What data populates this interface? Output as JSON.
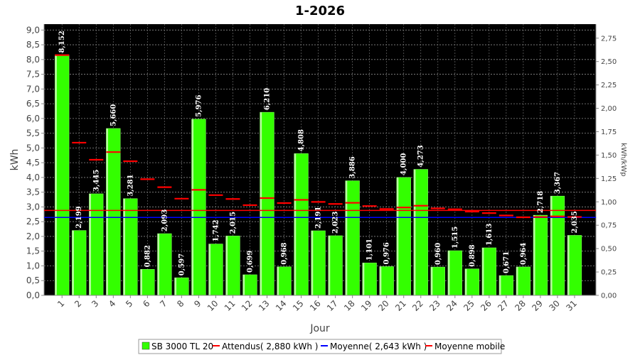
{
  "chart_data": {
    "type": "bar",
    "title": "1-2026",
    "xlabel": "Jour",
    "ylabel": "kWh",
    "y2label": "kWh/kWp",
    "ylim": [
      0,
      9.2
    ],
    "y2lim": [
      0,
      2.9
    ],
    "yticks": [
      "0,0",
      "0,5",
      "1,0",
      "1,5",
      "2,0",
      "2,5",
      "3,0",
      "3,5",
      "4,0",
      "4,5",
      "5,0",
      "5,5",
      "6,0",
      "6,5",
      "7,0",
      "7,5",
      "8,0",
      "8,5",
      "9,0"
    ],
    "y2ticks": [
      "0,00",
      "0,25",
      "0,50",
      "0,75",
      "1,00",
      "1,25",
      "1,50",
      "1,75",
      "2,00",
      "2,25",
      "2,50",
      "2,75"
    ],
    "categories": [
      "1",
      "2",
      "3",
      "4",
      "5",
      "6",
      "7",
      "8",
      "9",
      "10",
      "11",
      "12",
      "13",
      "14",
      "15",
      "16",
      "17",
      "18",
      "19",
      "20",
      "21",
      "22",
      "23",
      "24",
      "25",
      "26",
      "27",
      "28",
      "29",
      "30",
      "31"
    ],
    "series": [
      {
        "name": "SB 3000 TL 20",
        "color": "#33ff00",
        "values": [
          8.152,
          2.199,
          3.445,
          5.66,
          3.281,
          0.882,
          2.093,
          0.597,
          5.976,
          1.742,
          2.015,
          0.699,
          6.21,
          0.968,
          4.808,
          2.191,
          2.023,
          3.886,
          1.101,
          0.976,
          4.0,
          4.273,
          0.96,
          1.515,
          0.898,
          1.613,
          0.671,
          0.964,
          2.718,
          3.367,
          2.035
        ],
        "labels": [
          "8,152",
          "2,199",
          "3,445",
          "5,660",
          "3,281",
          "0,882",
          "2,093",
          "0,597",
          "5,976",
          "1,742",
          "2,015",
          "0,699",
          "6,210",
          "0,968",
          "4,808",
          "2,191",
          "2,023",
          "3,886",
          "1,101",
          "0,976",
          "4,000",
          "4,273",
          "0,960",
          "1,515",
          "0,898",
          "1,613",
          "0,671",
          "0,964",
          "2,718",
          "3,367",
          "2,035"
        ]
      },
      {
        "name": "Attendus( 2,880 kWh )",
        "color": "#ff0000",
        "value": 2.88
      },
      {
        "name": "Moyenne( 2,643 kWh )",
        "color": "#0000ff",
        "value": 2.643
      },
      {
        "name": "Moyenne mobile",
        "color": "#ff0000",
        "values": [
          8.15,
          5.18,
          4.6,
          4.86,
          4.55,
          3.94,
          3.67,
          3.28,
          3.58,
          3.4,
          3.27,
          3.06,
          3.3,
          3.13,
          3.24,
          3.17,
          3.1,
          3.14,
          3.03,
          2.93,
          2.98,
          3.04,
          2.95,
          2.92,
          2.84,
          2.79,
          2.71,
          2.65,
          2.66,
          2.68,
          2.66
        ]
      }
    ],
    "grid": true,
    "legend_position": "bottom"
  }
}
